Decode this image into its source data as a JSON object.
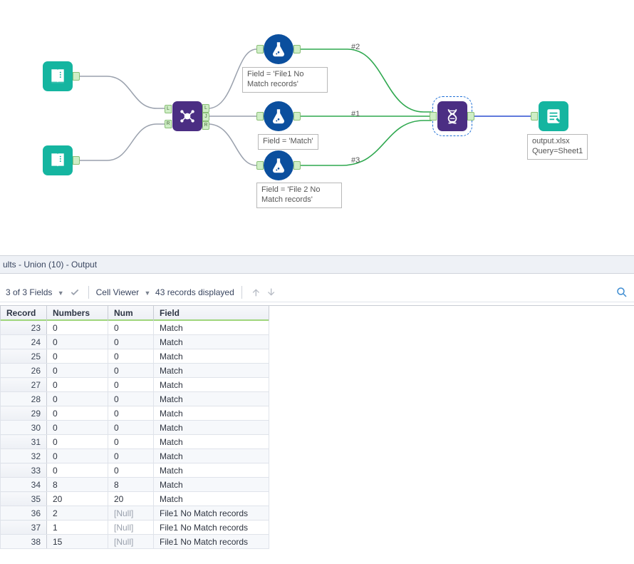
{
  "canvas": {
    "colors": {
      "wire_gray": "#9aa1ad",
      "wire_green": "#2fa84f",
      "wire_blue": "#2b4fd0",
      "input_tool": "#15b5a0",
      "prep_tool": "#4b2e83",
      "formula_tool": "#0b4f9e",
      "selection_dash": "#1e6fd6"
    },
    "annotations": {
      "formula1": "Field = 'File1 No Match records'",
      "formula2": "Field = 'Match'",
      "formula3": "Field = 'File 2 No Match records'"
    },
    "port_labels": {
      "p1": "#1",
      "p2": "#2",
      "p3": "#3"
    },
    "join_anchors": {
      "l": "L",
      "j": "J",
      "r": "R"
    },
    "output_annot_line1": "output.xlsx",
    "output_annot_line2": "Query=Sheet1"
  },
  "results": {
    "title": "ults - Union (10) - Output",
    "fields_label": "3 of 3 Fields",
    "cell_viewer_label": "Cell Viewer",
    "records_label": "43 records displayed",
    "columns": [
      "Record",
      "Numbers",
      "Num",
      "Field"
    ],
    "rows": [
      {
        "rec": "23",
        "c1": "0",
        "c2": "0",
        "c3": "Match",
        "null2": false
      },
      {
        "rec": "24",
        "c1": "0",
        "c2": "0",
        "c3": "Match",
        "null2": false
      },
      {
        "rec": "25",
        "c1": "0",
        "c2": "0",
        "c3": "Match",
        "null2": false
      },
      {
        "rec": "26",
        "c1": "0",
        "c2": "0",
        "c3": "Match",
        "null2": false
      },
      {
        "rec": "27",
        "c1": "0",
        "c2": "0",
        "c3": "Match",
        "null2": false
      },
      {
        "rec": "28",
        "c1": "0",
        "c2": "0",
        "c3": "Match",
        "null2": false
      },
      {
        "rec": "29",
        "c1": "0",
        "c2": "0",
        "c3": "Match",
        "null2": false
      },
      {
        "rec": "30",
        "c1": "0",
        "c2": "0",
        "c3": "Match",
        "null2": false
      },
      {
        "rec": "31",
        "c1": "0",
        "c2": "0",
        "c3": "Match",
        "null2": false
      },
      {
        "rec": "32",
        "c1": "0",
        "c2": "0",
        "c3": "Match",
        "null2": false
      },
      {
        "rec": "33",
        "c1": "0",
        "c2": "0",
        "c3": "Match",
        "null2": false
      },
      {
        "rec": "34",
        "c1": "8",
        "c2": "8",
        "c3": "Match",
        "null2": false
      },
      {
        "rec": "35",
        "c1": "20",
        "c2": "20",
        "c3": "Match",
        "null2": false
      },
      {
        "rec": "36",
        "c1": "2",
        "c2": "[Null]",
        "c3": "File1 No Match records",
        "null2": true
      },
      {
        "rec": "37",
        "c1": "1",
        "c2": "[Null]",
        "c3": "File1 No Match records",
        "null2": true
      },
      {
        "rec": "38",
        "c1": "15",
        "c2": "[Null]",
        "c3": "File1 No Match records",
        "null2": true
      }
    ]
  }
}
